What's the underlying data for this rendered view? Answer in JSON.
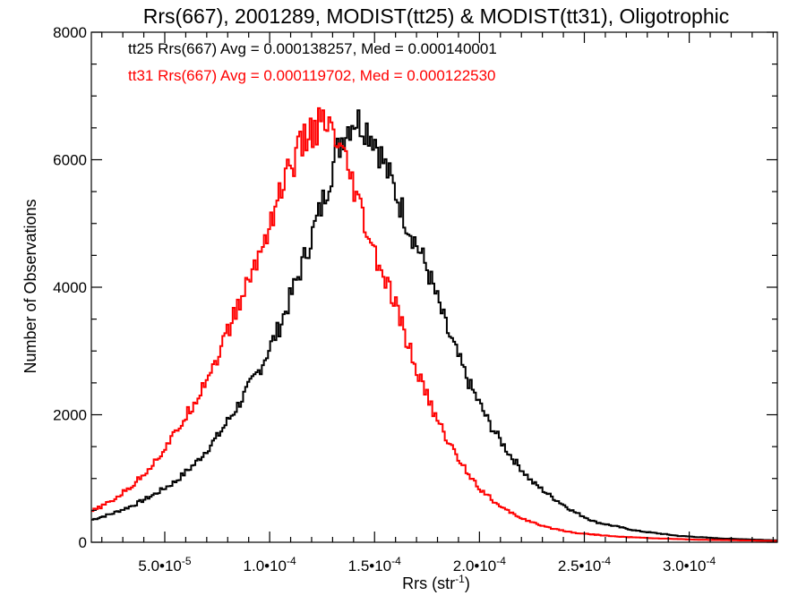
{
  "chart_data": {
    "type": "line",
    "title": "Rrs(667), 2001289, MODIST(tt25) & MODIST(tt31), Oligotrophic",
    "xlabel": "Rrs (str",
    "xlabel_sup": "-1",
    "xlabel_close": ")",
    "ylabel": "Number of Observations",
    "xlim": [
      1.5e-05,
      0.000342
    ],
    "ylim": [
      0,
      8000
    ],
    "x_ticks": [
      {
        "mantissa": "5.0",
        "exp": "-5",
        "value": 5e-05
      },
      {
        "mantissa": "1.0",
        "exp": "-4",
        "value": 0.0001
      },
      {
        "mantissa": "1.5",
        "exp": "-4",
        "value": 0.00015
      },
      {
        "mantissa": "2.0",
        "exp": "-4",
        "value": 0.0002
      },
      {
        "mantissa": "2.5",
        "exp": "-4",
        "value": 0.00025
      },
      {
        "mantissa": "3.0",
        "exp": "-4",
        "value": 0.0003
      }
    ],
    "x_tick_sep": "•10",
    "y_ticks": [
      0,
      2000,
      4000,
      6000,
      8000
    ],
    "legend": [
      {
        "text": "tt25 Rrs(667) Avg = 0.000138257, Med = 0.000140001",
        "color": "#000000"
      },
      {
        "text": "tt31 Rrs(667) Avg = 0.000119702, Med = 0.000122530",
        "color": "#ff0000"
      }
    ],
    "series": [
      {
        "color": "#000000",
        "x": [
          1.5e-05,
          2.5e-05,
          3.5e-05,
          4.5e-05,
          5.5e-05,
          6.5e-05,
          7.5e-05,
          8.5e-05,
          9.5e-05,
          0.000105,
          0.000115,
          0.000125,
          0.00013,
          0.000135,
          0.00014,
          0.000145,
          0.00015,
          0.000155,
          0.00016,
          0.000165,
          0.000175,
          0.000185,
          0.000195,
          0.000205,
          0.000215,
          0.000225,
          0.000235,
          0.000245,
          0.000255,
          0.000275,
          0.000295,
          0.000315,
          0.000342
        ],
        "y": [
          350,
          450,
          580,
          750,
          950,
          1250,
          1650,
          2150,
          2700,
          3400,
          4300,
          5300,
          5900,
          6400,
          6650,
          6550,
          6350,
          5900,
          5500,
          5050,
          4300,
          3300,
          2500,
          1850,
          1350,
          950,
          700,
          480,
          320,
          180,
          100,
          60,
          30
        ]
      },
      {
        "color": "#ff0000",
        "x": [
          1.5e-05,
          2.5e-05,
          3.5e-05,
          4.5e-05,
          5.5e-05,
          6.5e-05,
          7.5e-05,
          8.5e-05,
          9.5e-05,
          0.0001,
          0.000105,
          0.00011,
          0.000115,
          0.00012,
          0.000125,
          0.00013,
          0.000135,
          0.00014,
          0.000145,
          0.00015,
          0.00016,
          0.00017,
          0.00018,
          0.00019,
          0.0002,
          0.00021,
          0.00022,
          0.00023,
          0.000245,
          0.000265,
          0.000285,
          0.000305,
          0.000342
        ],
        "y": [
          480,
          650,
          900,
          1250,
          1700,
          2250,
          2900,
          3700,
          4500,
          5000,
          5500,
          5900,
          6200,
          6450,
          6550,
          6400,
          6000,
          5550,
          5000,
          4500,
          3700,
          2700,
          1900,
          1300,
          850,
          550,
          380,
          250,
          150,
          90,
          60,
          40,
          20
        ]
      }
    ]
  }
}
